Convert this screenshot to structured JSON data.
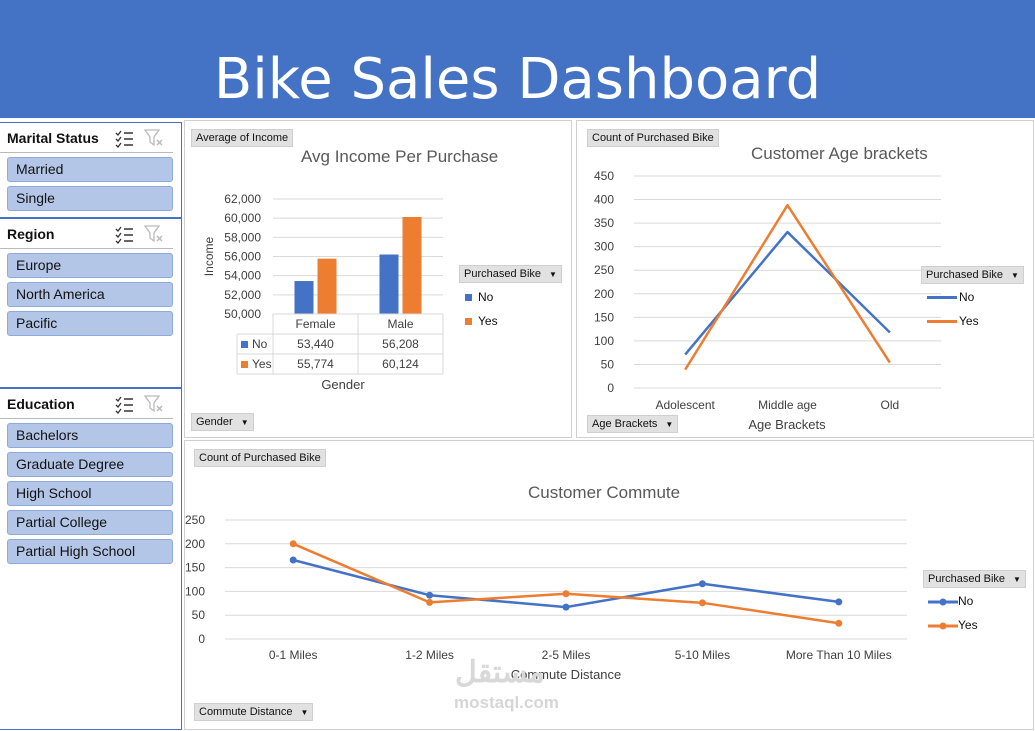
{
  "header": {
    "title": "Bike Sales Dashboard"
  },
  "slicers": {
    "marital": {
      "title": "Marital Status",
      "items": [
        "Married",
        "Single"
      ]
    },
    "region": {
      "title": "Region",
      "items": [
        "Europe",
        "North America",
        "Pacific"
      ]
    },
    "education": {
      "title": "Education",
      "items": [
        "Bachelors",
        "Graduate Degree",
        "High School",
        "Partial College",
        "Partial High School"
      ]
    }
  },
  "icons": {
    "multiselect": "multi-select-icon",
    "clear_filter": "clear-filter-icon",
    "dropdown": "dropdown-arrow-icon"
  },
  "colors": {
    "banner": "#4472c4",
    "no": "#4472c4",
    "yes": "#ed7d31",
    "slicer_item": "#b4c6e7"
  },
  "income_chart": {
    "value_button": "Average of Income",
    "axis_button": "Gender",
    "legend_button": "Purchased Bike",
    "chart_data": {
      "type": "bar",
      "title": "Avg Income Per Purchase",
      "xlabel": "Gender",
      "ylabel": "Income",
      "categories": [
        "Female",
        "Male"
      ],
      "series": [
        {
          "name": "No",
          "values": [
            53440,
            56208
          ],
          "labels": [
            "53,440",
            "56,208"
          ]
        },
        {
          "name": "Yes",
          "values": [
            55774,
            60124
          ],
          "labels": [
            "55,774",
            "60,124"
          ]
        }
      ],
      "ylim": [
        50000,
        62000
      ],
      "yticks": [
        "50,000",
        "52,000",
        "54,000",
        "56,000",
        "58,000",
        "60,000",
        "62,000"
      ],
      "gridlines": true,
      "data_table": true,
      "legend": "right"
    }
  },
  "age_chart": {
    "value_button": "Count of Purchased Bike",
    "axis_button": "Age Brackets",
    "legend_button": "Purchased Bike",
    "chart_data": {
      "type": "line",
      "title": "Customer Age brackets",
      "xlabel": "Age Brackets",
      "categories": [
        "Adolescent",
        "Middle age",
        "Old"
      ],
      "series": [
        {
          "name": "No",
          "values": [
            71,
            331,
            118
          ]
        },
        {
          "name": "Yes",
          "values": [
            39,
            388,
            54
          ]
        }
      ],
      "ylim": [
        0,
        450
      ],
      "yticks": [
        "0",
        "50",
        "100",
        "150",
        "200",
        "250",
        "300",
        "350",
        "400",
        "450"
      ],
      "gridlines": true,
      "legend": "right"
    }
  },
  "commute_chart": {
    "value_button": "Count of Purchased Bike",
    "axis_button": "Commute Distance",
    "legend_button": "Purchased Bike",
    "chart_data": {
      "type": "line",
      "title": "Customer Commute",
      "xlabel": "Commute Distance",
      "categories": [
        "0-1 Miles",
        "1-2 Miles",
        "2-5 Miles",
        "5-10 Miles",
        "More Than 10 Miles"
      ],
      "series": [
        {
          "name": "No",
          "values": [
            166,
            92,
            67,
            116,
            78
          ]
        },
        {
          "name": "Yes",
          "values": [
            200,
            77,
            95,
            76,
            33
          ]
        }
      ],
      "ylim": [
        0,
        250
      ],
      "yticks": [
        "0",
        "50",
        "100",
        "150",
        "200",
        "250"
      ],
      "gridlines": true,
      "markers": true,
      "legend": "right"
    }
  },
  "watermark": {
    "arabic": "مستقل",
    "latin": "mostaql.com"
  }
}
